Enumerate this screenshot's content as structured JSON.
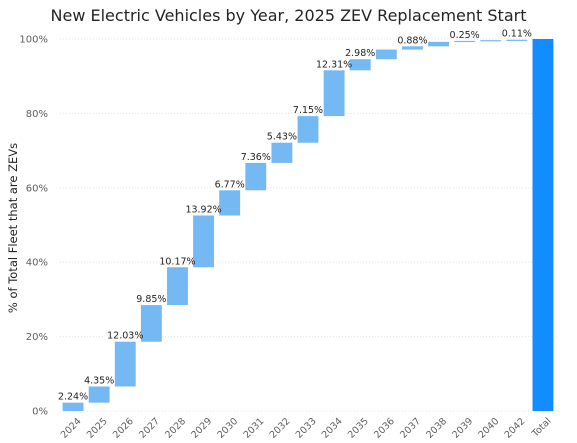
{
  "chart_data": {
    "type": "waterfall",
    "title": "New Electric Vehicles by Year, 2025 ZEV Replacement Start",
    "ylabel": "% of Total Fleet that are ZEVs",
    "xlabel": "",
    "ylim": [
      0,
      100
    ],
    "yticks": [
      "0%",
      "20%",
      "40%",
      "60%",
      "80%",
      "100%"
    ],
    "categories": [
      "2024",
      "2025",
      "2026",
      "2027",
      "2028",
      "2029",
      "2030",
      "2031",
      "2032",
      "2033",
      "2034",
      "2035",
      "2036",
      "2037",
      "2038",
      "2039",
      "2040",
      "2042",
      "Total"
    ],
    "increments": [
      2.24,
      4.35,
      12.03,
      9.85,
      10.17,
      13.92,
      6.77,
      7.36,
      5.43,
      7.15,
      12.31,
      2.98,
      2.6,
      0.88,
      1.2,
      0.25,
      0.2,
      0.11
    ],
    "labels": [
      "2.24%",
      "4.35%",
      "12.03%",
      "9.85%",
      "10.17%",
      "13.92%",
      "6.77%",
      "7.36%",
      "5.43%",
      "7.15%",
      "12.31%",
      "2.98%",
      "",
      "0.88%",
      "",
      "0.25%",
      "",
      "0.11%",
      ""
    ],
    "total": 100,
    "grid": true,
    "colors": {
      "increase": "#74b9f4",
      "total": "#118dff",
      "text": "#252423",
      "axis_text": "#605e5c"
    }
  }
}
